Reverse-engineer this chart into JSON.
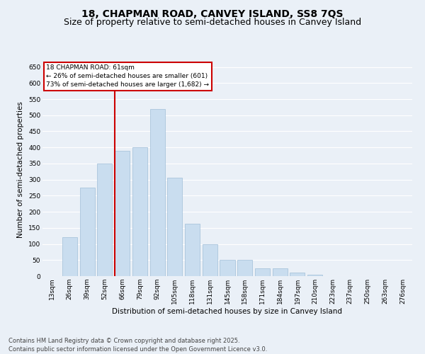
{
  "title": "18, CHAPMAN ROAD, CANVEY ISLAND, SS8 7QS",
  "subtitle": "Size of property relative to semi-detached houses in Canvey Island",
  "xlabel": "Distribution of semi-detached houses by size in Canvey Island",
  "ylabel": "Number of semi-detached properties",
  "categories": [
    "13sqm",
    "26sqm",
    "39sqm",
    "52sqm",
    "66sqm",
    "79sqm",
    "92sqm",
    "105sqm",
    "118sqm",
    "131sqm",
    "145sqm",
    "158sqm",
    "171sqm",
    "184sqm",
    "197sqm",
    "210sqm",
    "223sqm",
    "237sqm",
    "250sqm",
    "263sqm",
    "276sqm"
  ],
  "values": [
    0,
    120,
    275,
    350,
    390,
    400,
    520,
    305,
    163,
    100,
    50,
    50,
    25,
    25,
    10,
    5,
    0,
    0,
    0,
    0,
    0
  ],
  "bar_color": "#c9ddef",
  "bar_edge_color": "#a0bfd8",
  "vline_color": "#cc0000",
  "vline_pos": 3.57,
  "annotation_title": "18 CHAPMAN ROAD: 61sqm",
  "annotation_line1": "← 26% of semi-detached houses are smaller (601)",
  "annotation_line2": "73% of semi-detached houses are larger (1,682) →",
  "annotation_box_edgecolor": "#cc0000",
  "ylim": [
    0,
    660
  ],
  "yticks": [
    0,
    50,
    100,
    150,
    200,
    250,
    300,
    350,
    400,
    450,
    500,
    550,
    600,
    650
  ],
  "footer1": "Contains HM Land Registry data © Crown copyright and database right 2025.",
  "footer2": "Contains public sector information licensed under the Open Government Licence v3.0.",
  "bg_color": "#eaf0f7",
  "title_fontsize": 10,
  "subtitle_fontsize": 9,
  "axis_label_fontsize": 7.5,
  "tick_fontsize": 6.5,
  "annotation_fontsize": 6.5,
  "footer_fontsize": 6
}
